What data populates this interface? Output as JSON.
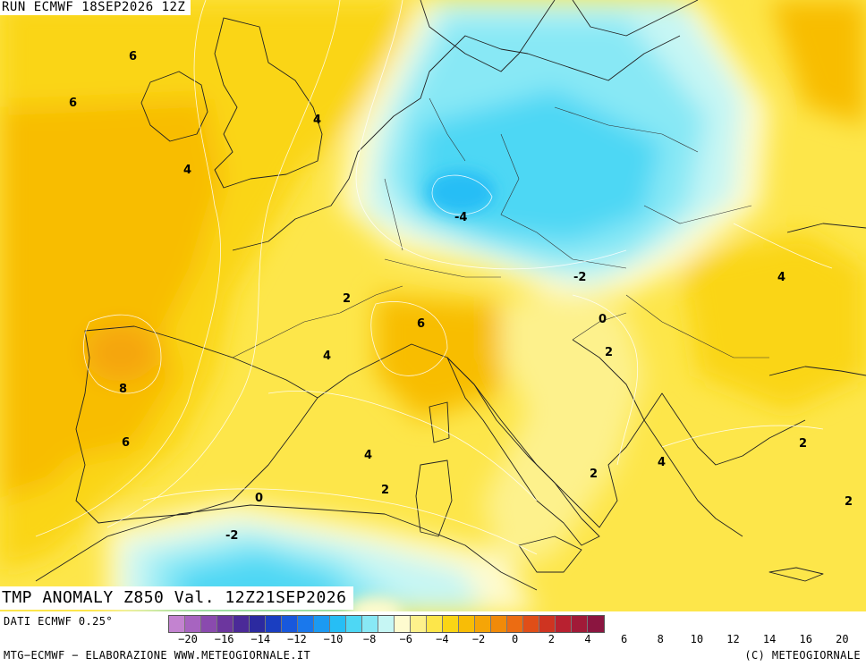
{
  "header": {
    "run_title": "RUN ECMWF 18SEP2026 12Z",
    "field_title": "TMP ANOMALY Z850 Val. 12Z21SEP2026"
  },
  "map": {
    "contour_labels": [
      "6",
      "6",
      "4",
      "4",
      "-4",
      "-2",
      "2",
      "4",
      "6",
      "0",
      "2",
      "4",
      "8",
      "6",
      "4",
      "2",
      "2",
      "0",
      "-2",
      "4",
      "2",
      "2"
    ]
  },
  "legend": {
    "colors": [
      "#c383d0",
      "#a764c0",
      "#8a4aae",
      "#6c369e",
      "#4b2a98",
      "#2c2aa0",
      "#1a3ec1",
      "#1858dc",
      "#1a78ec",
      "#1c9af2",
      "#26bef5",
      "#4ed7f4",
      "#88e8f5",
      "#c6f6f4",
      "#fefbcf",
      "#fdf18c",
      "#fde64a",
      "#fad515",
      "#f8bd06",
      "#f5a507",
      "#f18a09",
      "#ec6c12",
      "#e04e18",
      "#cf3421",
      "#b82130",
      "#a11a38",
      "#8b1540"
    ],
    "ticks": [
      "−20",
      "−16",
      "−14",
      "−12",
      "−10",
      "−8",
      "−6",
      "−4",
      "−2",
      "0",
      "2",
      "4",
      "6",
      "8",
      "10",
      "12",
      "14",
      "16",
      "20"
    ],
    "units_note": ""
  },
  "footer": {
    "data_source": "DATI ECMWF 0.25°",
    "credit_left": "MTG−ECMWF − ELABORAZIONE WWW.METEOGIORNALE.IT",
    "credit_right": "(C) METEOGIORNALE"
  }
}
